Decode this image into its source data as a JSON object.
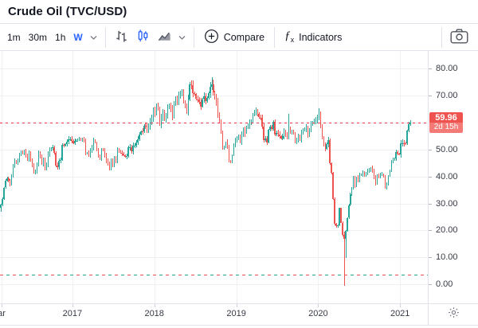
{
  "header": {
    "title": "Crude Oil (TVC/USD)"
  },
  "toolbar": {
    "intervals": [
      "1m",
      "30m",
      "1h",
      "W"
    ],
    "active_interval": "W",
    "style_icons": [
      "bars-icon",
      "candles-icon",
      "area-icon"
    ],
    "active_style": "candles",
    "compare_label": "Compare",
    "indicators_label": "Indicators"
  },
  "price_axis": {
    "ticks": [
      "80.00",
      "70.00",
      "50.00",
      "40.00",
      "30.00",
      "20.00",
      "10.00",
      "0.00"
    ],
    "last_price": "59.96",
    "countdown": "2d 15h"
  },
  "time_axis": {
    "ticks": [
      {
        "label": "ar",
        "index": 1
      },
      {
        "label": "2017",
        "index": 46
      },
      {
        "label": "2018",
        "index": 98
      },
      {
        "label": "2019",
        "index": 150
      },
      {
        "label": "2020",
        "index": 202
      },
      {
        "label": "2021",
        "index": 254
      }
    ]
  },
  "chart_data": {
    "type": "candlestick",
    "symbol": "Crude Oil (TVC/USD)",
    "interval": "W",
    "title": "Crude Oil (TVC/USD) weekly candles, early 2016 - early 2021",
    "ylim": [
      -7.05,
      86.55
    ],
    "y_gridlines": [
      0,
      10,
      20,
      30,
      40,
      50,
      60,
      70,
      80
    ],
    "last_price": 59.96,
    "low_dash_price": 3.5,
    "open_first": 28.5,
    "closes": [
      29.6,
      31.5,
      35.9,
      38.5,
      39.4,
      38.3,
      36.8,
      40.4,
      43.7,
      45.9,
      44.7,
      46.2,
      47.8,
      49.3,
      48.6,
      49.1,
      47.9,
      46.3,
      48.9,
      45.9,
      44.2,
      41.6,
      41.8,
      44.5,
      48.5,
      47.6,
      44.9,
      45.9,
      43.0,
      44.5,
      48.2,
      49.8,
      50.4,
      50.9,
      48.7,
      44.1,
      43.4,
      45.7,
      46.1,
      51.7,
      51.5,
      52.0,
      53.0,
      53.7,
      53.9,
      53.2,
      52.4,
      53.2,
      53.2,
      53.8,
      53.9,
      53.4,
      54.0,
      53.3,
      48.5,
      48.8,
      48.0,
      49.5,
      50.6,
      53.2,
      52.6,
      49.6,
      47.8,
      46.2,
      50.3,
      49.8,
      47.7,
      45.8,
      44.7,
      43.0,
      46.0,
      44.2,
      46.5,
      45.8,
      49.7,
      49.6,
      48.8,
      48.5,
      47.9,
      47.3,
      47.5,
      50.7,
      50.7,
      49.3,
      51.5,
      51.5,
      52.6,
      53.9,
      55.6,
      56.7,
      56.6,
      58.9,
      58.4,
      57.3,
      58.5,
      60.4,
      61.4,
      64.3,
      63.4,
      66.1,
      65.5,
      59.2,
      61.7,
      63.6,
      61.3,
      62.0,
      65.9,
      65.9,
      64.9,
      62.1,
      67.4,
      68.4,
      68.1,
      69.7,
      70.7,
      71.3,
      67.9,
      65.8,
      64.1,
      68.6,
      74.2,
      73.8,
      71.0,
      70.5,
      68.7,
      68.5,
      67.6,
      65.9,
      68.7,
      69.8,
      67.8,
      69.0,
      70.8,
      73.3,
      74.3,
      71.3,
      69.1,
      67.6,
      63.1,
      60.2,
      56.5,
      50.4,
      50.9,
      52.6,
      51.2,
      45.6,
      45.3,
      48.0,
      51.6,
      53.7,
      53.7,
      55.3,
      52.7,
      55.6,
      57.3,
      56.0,
      58.5,
      58.8,
      60.0,
      60.1,
      63.1,
      63.9,
      64.0,
      63.3,
      61.9,
      61.7,
      58.6,
      53.5,
      54.0,
      52.5,
      57.4,
      58.5,
      57.5,
      60.2,
      55.6,
      56.2,
      55.7,
      54.9,
      54.2,
      55.1,
      56.5,
      55.3,
      54.8,
      58.1,
      56.0,
      56.8,
      55.9,
      52.8,
      53.6,
      54.7,
      53.8,
      56.2,
      57.2,
      57.7,
      57.8,
      55.2,
      57.4,
      59.2,
      60.1,
      60.4,
      60.9,
      61.7,
      63.1,
      59.0,
      54.2,
      51.6,
      50.3,
      52.1,
      53.4,
      44.8,
      41.3,
      31.7,
      22.4,
      21.5,
      21.8,
      28.3,
      22.8,
      18.3,
      16.9,
      19.8,
      24.7,
      29.4,
      33.3,
      35.5,
      39.6,
      36.3,
      39.8,
      38.5,
      40.6,
      40.6,
      41.3,
      40.3,
      41.2,
      42.0,
      42.3,
      43.0,
      42.3,
      39.8,
      37.3,
      40.3,
      40.1,
      40.6,
      40.9,
      39.9,
      35.8,
      37.1,
      40.1,
      42.2,
      45.5,
      46.3,
      46.6,
      49.1,
      48.5,
      48.2,
      52.2,
      52.4,
      52.3,
      52.2,
      56.9,
      59.5,
      59.96
    ],
    "wick_overrides": {
      "0": {
        "low": 26.8
      },
      "134": {
        "high": 76.9
      },
      "183": {
        "high": 63.3
      },
      "202": {
        "high": 65.4
      },
      "218": {
        "low": -0.6,
        "high": 19.5
      },
      "219": {
        "low": 9.7
      }
    },
    "colors": {
      "up": "#26a69a",
      "down": "#ef5350",
      "price_line": "#f23645",
      "badge_bg": "#ef5350",
      "badge_countdown_bg": "#f37a76",
      "grid": "#eff1f4"
    }
  }
}
